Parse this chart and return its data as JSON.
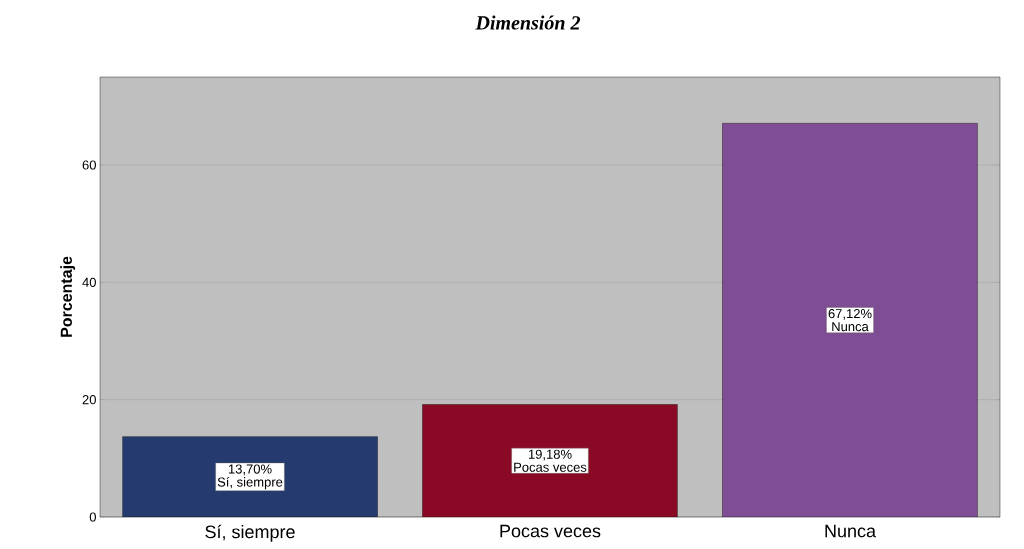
{
  "chart_data": {
    "type": "bar",
    "title": "Dimensión 2",
    "ylabel": "Porcentaje",
    "categories": [
      "Sí, siempre",
      "Pocas veces",
      "Nunca"
    ],
    "values": [
      13.7,
      19.18,
      67.12
    ],
    "value_labels": [
      "13,70%",
      "19,18%",
      "67,12%"
    ],
    "colors": [
      "#253a6e",
      "#8a0a25",
      "#7f4d93"
    ],
    "ylim": [
      0,
      75
    ],
    "yticks": [
      0,
      20,
      40,
      60
    ],
    "grid": "y"
  }
}
